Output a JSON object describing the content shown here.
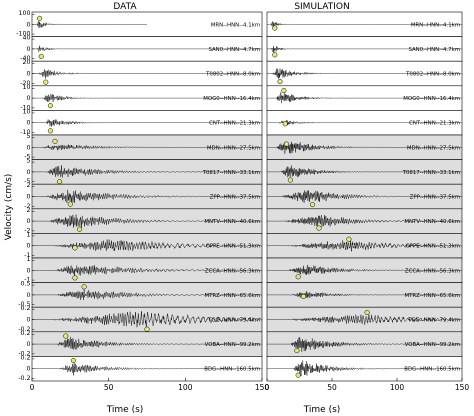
{
  "chart_data": {
    "type": "line",
    "panels": [
      {
        "title": "DATA"
      },
      {
        "title": "SIMULATION"
      }
    ],
    "xlabel": "Time (s)",
    "ylabel": "Velocity (cm/s)",
    "xlim": [
      0,
      150
    ],
    "xticks": [
      0,
      50,
      100,
      150
    ],
    "shaded_rows": [
      5,
      6,
      7,
      8,
      9,
      10,
      11,
      12,
      13
    ],
    "marker_color": "#e8e870",
    "traces": [
      {
        "station": "MRN--HNN--4.1km",
        "ylim": [
          -100,
          100
        ],
        "yticks": [
          "100",
          "0",
          "-100"
        ],
        "data": {
          "onset": 3,
          "peak": 4,
          "dur": 10,
          "amp": 0.55,
          "end": 75,
          "marker": [
            5,
            0.55
          ]
        },
        "sim": {
          "onset": 3,
          "peak": 4,
          "dur": 8,
          "amp": 0.45,
          "end": 150,
          "marker": [
            6,
            -0.35
          ]
        }
      },
      {
        "station": "SAN0--HNN--4.7km",
        "ylim": [
          -40,
          40
        ],
        "yticks": [
          "40",
          "0",
          "-40"
        ],
        "data": {
          "onset": 3,
          "peak": 5,
          "dur": 10,
          "amp": 0.5,
          "end": 150,
          "marker": [
            6,
            -0.7
          ]
        },
        "sim": {
          "onset": 3,
          "peak": 5,
          "dur": 10,
          "amp": 0.45,
          "end": 150,
          "marker": [
            6,
            -0.55
          ]
        }
      },
      {
        "station": "T0802--HNN--8.0km",
        "ylim": [
          -20,
          20
        ],
        "yticks": [
          "20",
          "0",
          "-20"
        ],
        "data": {
          "onset": 4,
          "peak": 9,
          "dur": 20,
          "amp": 0.55,
          "end": 150,
          "marker": [
            9,
            -0.8
          ]
        },
        "sim": {
          "onset": 4,
          "peak": 8,
          "dur": 30,
          "amp": 0.6,
          "end": 150,
          "marker": [
            10,
            -0.75
          ]
        }
      },
      {
        "station": "MOG0--HNN--16.4km",
        "ylim": [
          -10,
          10
        ],
        "yticks": [
          "10",
          "0",
          "-10"
        ],
        "data": {
          "onset": 7,
          "peak": 11,
          "dur": 20,
          "amp": 0.6,
          "end": 150,
          "marker": [
            12,
            -0.7
          ]
        },
        "sim": {
          "onset": 7,
          "peak": 10,
          "dur": 30,
          "amp": 0.7,
          "end": 150,
          "marker": [
            13,
            0.7
          ]
        }
      },
      {
        "station": "CNT--HNN--21.3km",
        "ylim": [
          -10,
          10
        ],
        "yticks": [
          "10",
          "0",
          "-10"
        ],
        "data": {
          "onset": 8,
          "peak": 12,
          "dur": 25,
          "amp": 0.5,
          "end": 150,
          "marker": [
            12,
            -0.75
          ]
        },
        "sim": {
          "onset": 9,
          "peak": 13,
          "dur": 25,
          "amp": 0.35,
          "end": 150,
          "marker": [
            14,
            -0.1
          ]
        }
      },
      {
        "station": "MDN--HNN--27.5km",
        "ylim": [
          -5,
          5
        ],
        "yticks": [
          "5",
          "0",
          "-5"
        ],
        "data": {
          "onset": 6,
          "peak": 14,
          "dur": 60,
          "amp": 0.4,
          "end": 150,
          "marker": [
            15,
            0.55
          ]
        },
        "sim": {
          "onset": 7,
          "peak": 14,
          "dur": 45,
          "amp": 0.85,
          "end": 150,
          "marker": [
            15,
            0.3
          ]
        }
      },
      {
        "station": "T0817--HNN--33.1km",
        "ylim": [
          -5,
          5
        ],
        "yticks": [
          "5",
          "0",
          "-5"
        ],
        "data": {
          "onset": 9,
          "peak": 16,
          "dur": 60,
          "amp": 0.7,
          "end": 150,
          "marker": [
            18,
            -0.9
          ]
        },
        "sim": {
          "onset": 10,
          "peak": 17,
          "dur": 40,
          "amp": 0.75,
          "end": 150,
          "marker": [
            18,
            -0.75
          ]
        }
      },
      {
        "station": "ZPP--HNN--37.5km",
        "ylim": [
          -2,
          2
        ],
        "yticks": [
          "2",
          "0",
          "-2"
        ],
        "data": {
          "onset": 8,
          "peak": 24,
          "dur": 70,
          "amp": 0.7,
          "end": 150,
          "marker": [
            25,
            -0.7
          ]
        },
        "sim": {
          "onset": 9,
          "peak": 33,
          "dur": 55,
          "amp": 0.75,
          "end": 150,
          "marker": [
            35,
            -0.75
          ]
        }
      },
      {
        "station": "MNTV--HNN--40.6km",
        "ylim": [
          -2,
          2
        ],
        "yticks": [
          "2",
          "0",
          "-2"
        ],
        "data": {
          "onset": 10,
          "peak": 28,
          "dur": 60,
          "amp": 0.8,
          "end": 150,
          "marker": [
            31,
            -0.75
          ]
        },
        "sim": {
          "onset": 12,
          "peak": 42,
          "dur": 60,
          "amp": 0.65,
          "end": 150,
          "marker": [
            40,
            -0.65
          ]
        }
      },
      {
        "station": "OPPE--HNN--51.3km",
        "ylim": [
          -1,
          1
        ],
        "yticks": [
          "1",
          "0",
          "-1"
        ],
        "data": {
          "onset": 12,
          "peak": 55,
          "dur": 85,
          "amp": 0.75,
          "end": 150,
          "marker": [
            28,
            -0.2
          ]
        },
        "sim": {
          "onset": 14,
          "peak": 62,
          "dur": 80,
          "amp": 0.6,
          "end": 150,
          "marker": [
            63,
            0.6
          ]
        }
      },
      {
        "station": "ZCCA--HNN--56.3km",
        "ylim": [
          -1,
          1
        ],
        "yticks": [
          "1",
          "0",
          "-1"
        ],
        "data": {
          "onset": 14,
          "peak": 28,
          "dur": 90,
          "amp": 0.65,
          "end": 150,
          "marker": [
            28,
            -0.7
          ]
        },
        "sim": {
          "onset": 15,
          "peak": 30,
          "dur": 60,
          "amp": 0.55,
          "end": 150,
          "marker": [
            24,
            -0.6
          ]
        }
      },
      {
        "station": "MTRZ--HNN--65.6km",
        "ylim": [
          -0.5,
          0.5
        ],
        "yticks": [
          "0.5",
          "0",
          "-0.5"
        ],
        "data": {
          "onset": 15,
          "peak": 34,
          "dur": 70,
          "amp": 0.6,
          "end": 150,
          "marker": [
            34,
            0.75
          ]
        },
        "sim": {
          "onset": 16,
          "peak": 30,
          "dur": 45,
          "amp": 0.4,
          "end": 150,
          "marker": [
            28,
            -0.15
          ]
        }
      },
      {
        "station": "TGG--HNN--79.4km",
        "ylim": [
          -0.2,
          0.2
        ],
        "yticks": [
          "0.2",
          "0",
          "-0.2"
        ],
        "data": {
          "onset": 10,
          "peak": 70,
          "dur": 100,
          "amp": 0.9,
          "end": 150,
          "marker": [
            75,
            -0.9
          ]
        },
        "sim": {
          "onset": 12,
          "peak": 75,
          "dur": 90,
          "amp": 0.55,
          "end": 150,
          "marker": [
            77,
            0.65
          ]
        }
      },
      {
        "station": "VOBA--HNN--99.2km",
        "ylim": [
          -0.2,
          0.2
        ],
        "yticks": [
          "0.2",
          "0",
          "-0.2"
        ],
        "data": {
          "onset": 16,
          "peak": 24,
          "dur": 50,
          "amp": 0.75,
          "end": 150,
          "marker": [
            22,
            0.75
          ]
        },
        "sim": {
          "onset": 18,
          "peak": 25,
          "dur": 55,
          "amp": 0.8,
          "end": 150,
          "marker": [
            23,
            -0.6
          ]
        }
      },
      {
        "station": "BDG--HNN--160.5km",
        "ylim": [
          -0.2,
          0.2
        ],
        "yticks": [
          "0.2",
          "0",
          "-0.2"
        ],
        "data": {
          "onset": 17,
          "peak": 27,
          "dur": 45,
          "amp": 0.65,
          "end": 150,
          "marker": [
            27,
            0.75
          ]
        },
        "sim": {
          "onset": 20,
          "peak": 27,
          "dur": 45,
          "amp": 0.85,
          "end": 150,
          "marker": [
            24,
            -0.6
          ]
        }
      }
    ]
  }
}
